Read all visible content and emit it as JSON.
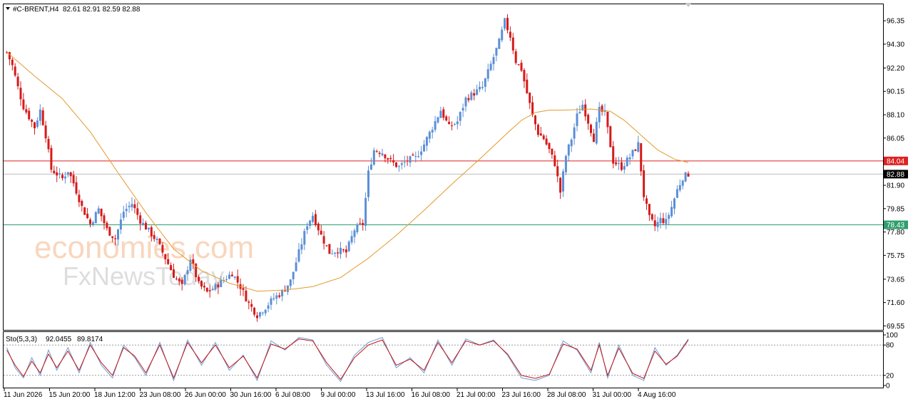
{
  "header": {
    "symbol_label": "#C-BRENT,H4",
    "ohlc": "82.61 82.91 82.59 82.88",
    "dropdown_icon": "triangle-down-icon"
  },
  "indicator": {
    "label": "Sto(5,3,3)",
    "main_value": "92.0455",
    "signal_value": "89.8174"
  },
  "watermark": {
    "brand": "economies.com",
    "brand2": "FxNewsToday"
  },
  "colors": {
    "bull": "#5b8fd6",
    "bear": "#d61a1a",
    "ma": "#e39a2a",
    "resistance": "#dd2222",
    "support": "#2f9e6e",
    "current": "#000000",
    "stoch_main": "#6a9fd8",
    "stoch_signal": "#c81414"
  },
  "chart_data": {
    "type": "candlestick",
    "price_axis_ticks": [
      "96.35",
      "94.30",
      "92.20",
      "90.15",
      "88.10",
      "86.05",
      "84.04",
      "82.88",
      "81.90",
      "79.85",
      "78.43",
      "77.80",
      "75.75",
      "73.65",
      "71.60",
      "69.55"
    ],
    "time_axis_ticks": [
      "11 Jun 2026",
      "15 Jun 20:00",
      "18 Jun 12:00",
      "23 Jun 08:00",
      "26 Jun 00:00",
      "30 Jun 16:00",
      "6 Jul 08:00",
      "9 Jul 00:00",
      "13 Jul 16:00",
      "16 Jul 08:00",
      "21 Jul 00:00",
      "23 Jul 16:00",
      "28 Jul 08:00",
      "31 Jul 00:00",
      "4 Aug 16:00"
    ],
    "ylim": [
      69.2,
      97.8
    ],
    "current_price": 82.88,
    "resistance_level": 84.04,
    "support_level": 78.43,
    "price_path": [
      [
        0,
        93.6
      ],
      [
        2,
        92.4
      ],
      [
        4,
        90.5
      ],
      [
        6,
        88.8
      ],
      [
        8,
        87.9
      ],
      [
        10,
        87.0
      ],
      [
        12,
        88.5
      ],
      [
        14,
        86.3
      ],
      [
        16,
        83.3
      ],
      [
        20,
        82.5
      ],
      [
        22,
        83.2
      ],
      [
        24,
        82.1
      ],
      [
        27,
        80.0
      ],
      [
        30,
        78.5
      ],
      [
        33,
        79.8
      ],
      [
        36,
        78.0
      ],
      [
        39,
        77.2
      ],
      [
        42,
        79.6
      ],
      [
        45,
        80.3
      ],
      [
        48,
        78.8
      ],
      [
        51,
        77.9
      ],
      [
        54,
        77.0
      ],
      [
        57,
        75.5
      ],
      [
        60,
        74.0
      ],
      [
        63,
        73.0
      ],
      [
        66,
        75.5
      ],
      [
        69,
        73.2
      ],
      [
        72,
        72.5
      ],
      [
        75,
        73.0
      ],
      [
        78,
        73.6
      ],
      [
        81,
        74.2
      ],
      [
        84,
        73.0
      ],
      [
        87,
        71.5
      ],
      [
        90,
        70.5
      ],
      [
        93,
        71.2
      ],
      [
        96,
        72.0
      ],
      [
        99,
        72.5
      ],
      [
        102,
        73.5
      ],
      [
        105,
        76.0
      ],
      [
        108,
        78.5
      ],
      [
        110,
        79.3
      ],
      [
        113,
        77.5
      ],
      [
        116,
        76.0
      ],
      [
        119,
        76.2
      ],
      [
        122,
        76.0
      ],
      [
        125,
        78.0
      ],
      [
        128,
        78.5
      ],
      [
        130,
        83.0
      ],
      [
        132,
        85.0
      ],
      [
        135,
        84.8
      ],
      [
        138,
        84.0
      ],
      [
        141,
        83.5
      ],
      [
        144,
        84.1
      ],
      [
        147,
        84.3
      ],
      [
        150,
        85.5
      ],
      [
        153,
        87.0
      ],
      [
        156,
        88.5
      ],
      [
        159,
        87.0
      ],
      [
        162,
        87.5
      ],
      [
        165,
        89.5
      ],
      [
        168,
        90.0
      ],
      [
        171,
        90.5
      ],
      [
        174,
        92.5
      ],
      [
        177,
        94.5
      ],
      [
        179,
        96.3
      ],
      [
        181,
        95.0
      ],
      [
        183,
        92.8
      ],
      [
        185,
        92.1
      ],
      [
        187,
        90.0
      ],
      [
        189,
        88.0
      ],
      [
        191,
        86.5
      ],
      [
        193,
        86.0
      ],
      [
        195,
        85.0
      ],
      [
        197,
        83.8
      ],
      [
        199,
        81.3
      ],
      [
        201,
        84.5
      ],
      [
        203,
        86.0
      ],
      [
        205,
        88.0
      ],
      [
        207,
        89.0
      ],
      [
        209,
        87.5
      ],
      [
        211,
        86.0
      ],
      [
        213,
        88.5
      ],
      [
        215,
        88.2
      ],
      [
        218,
        84.0
      ],
      [
        221,
        83.5
      ],
      [
        224,
        84.4
      ],
      [
        227,
        85.5
      ],
      [
        229,
        81.0
      ],
      [
        231,
        79.0
      ],
      [
        233,
        78.3
      ],
      [
        235,
        78.9
      ],
      [
        237,
        78.7
      ],
      [
        239,
        80.0
      ],
      [
        241,
        81.5
      ],
      [
        243,
        82.6
      ],
      [
        245,
        82.9
      ]
    ],
    "ma_path": [
      [
        0,
        93.6
      ],
      [
        10,
        91.5
      ],
      [
        20,
        89.5
      ],
      [
        30,
        86.6
      ],
      [
        40,
        83.0
      ],
      [
        50,
        79.5
      ],
      [
        60,
        76.3
      ],
      [
        70,
        74.4
      ],
      [
        80,
        73.3
      ],
      [
        90,
        72.6
      ],
      [
        100,
        72.7
      ],
      [
        110,
        73.0
      ],
      [
        120,
        73.8
      ],
      [
        130,
        75.5
      ],
      [
        140,
        77.5
      ],
      [
        150,
        79.7
      ],
      [
        160,
        82.0
      ],
      [
        170,
        84.2
      ],
      [
        180,
        86.5
      ],
      [
        185,
        87.6
      ],
      [
        190,
        88.3
      ],
      [
        195,
        88.5
      ],
      [
        200,
        88.5
      ],
      [
        210,
        88.6
      ],
      [
        217,
        88.4
      ],
      [
        222,
        87.6
      ],
      [
        228,
        86.3
      ],
      [
        234,
        85.0
      ],
      [
        240,
        84.2
      ],
      [
        245,
        83.9
      ]
    ],
    "stochastic": {
      "levels": [
        20,
        80
      ],
      "axis_ticks": [
        "100",
        "80",
        "20",
        "0"
      ],
      "main_path": [
        [
          0,
          75
        ],
        [
          3,
          35
        ],
        [
          6,
          15
        ],
        [
          9,
          55
        ],
        [
          12,
          20
        ],
        [
          15,
          70
        ],
        [
          18,
          30
        ],
        [
          22,
          75
        ],
        [
          26,
          25
        ],
        [
          30,
          85
        ],
        [
          34,
          40
        ],
        [
          38,
          15
        ],
        [
          42,
          80
        ],
        [
          46,
          55
        ],
        [
          50,
          20
        ],
        [
          55,
          85
        ],
        [
          60,
          10
        ],
        [
          65,
          90
        ],
        [
          70,
          40
        ],
        [
          75,
          85
        ],
        [
          80,
          30
        ],
        [
          85,
          60
        ],
        [
          90,
          10
        ],
        [
          95,
          88
        ],
        [
          100,
          70
        ],
        [
          105,
          95
        ],
        [
          110,
          90
        ],
        [
          115,
          40
        ],
        [
          120,
          8
        ],
        [
          125,
          60
        ],
        [
          130,
          85
        ],
        [
          135,
          95
        ],
        [
          140,
          35
        ],
        [
          145,
          55
        ],
        [
          150,
          25
        ],
        [
          155,
          90
        ],
        [
          160,
          40
        ],
        [
          165,
          92
        ],
        [
          170,
          80
        ],
        [
          175,
          90
        ],
        [
          180,
          60
        ],
        [
          185,
          15
        ],
        [
          190,
          10
        ],
        [
          195,
          20
        ],
        [
          200,
          88
        ],
        [
          205,
          70
        ],
        [
          210,
          25
        ],
        [
          213,
          85
        ],
        [
          216,
          15
        ],
        [
          220,
          80
        ],
        [
          225,
          20
        ],
        [
          229,
          10
        ],
        [
          233,
          75
        ],
        [
          237,
          40
        ],
        [
          241,
          60
        ],
        [
          245,
          92
        ]
      ],
      "signal_path": [
        [
          0,
          70
        ],
        [
          3,
          40
        ],
        [
          6,
          18
        ],
        [
          9,
          48
        ],
        [
          12,
          25
        ],
        [
          15,
          62
        ],
        [
          18,
          35
        ],
        [
          22,
          68
        ],
        [
          26,
          30
        ],
        [
          30,
          80
        ],
        [
          34,
          45
        ],
        [
          38,
          20
        ],
        [
          42,
          75
        ],
        [
          46,
          58
        ],
        [
          50,
          25
        ],
        [
          55,
          80
        ],
        [
          60,
          15
        ],
        [
          65,
          85
        ],
        [
          70,
          45
        ],
        [
          75,
          80
        ],
        [
          80,
          35
        ],
        [
          85,
          58
        ],
        [
          90,
          15
        ],
        [
          95,
          82
        ],
        [
          100,
          72
        ],
        [
          105,
          92
        ],
        [
          110,
          88
        ],
        [
          115,
          45
        ],
        [
          120,
          12
        ],
        [
          125,
          55
        ],
        [
          130,
          80
        ],
        [
          135,
          90
        ],
        [
          140,
          40
        ],
        [
          145,
          52
        ],
        [
          150,
          30
        ],
        [
          155,
          85
        ],
        [
          160,
          45
        ],
        [
          165,
          88
        ],
        [
          170,
          80
        ],
        [
          175,
          88
        ],
        [
          180,
          62
        ],
        [
          185,
          20
        ],
        [
          190,
          14
        ],
        [
          195,
          22
        ],
        [
          200,
          82
        ],
        [
          205,
          72
        ],
        [
          210,
          30
        ],
        [
          213,
          80
        ],
        [
          216,
          20
        ],
        [
          220,
          74
        ],
        [
          225,
          24
        ],
        [
          229,
          14
        ],
        [
          233,
          68
        ],
        [
          237,
          42
        ],
        [
          241,
          58
        ],
        [
          245,
          90
        ]
      ]
    }
  }
}
